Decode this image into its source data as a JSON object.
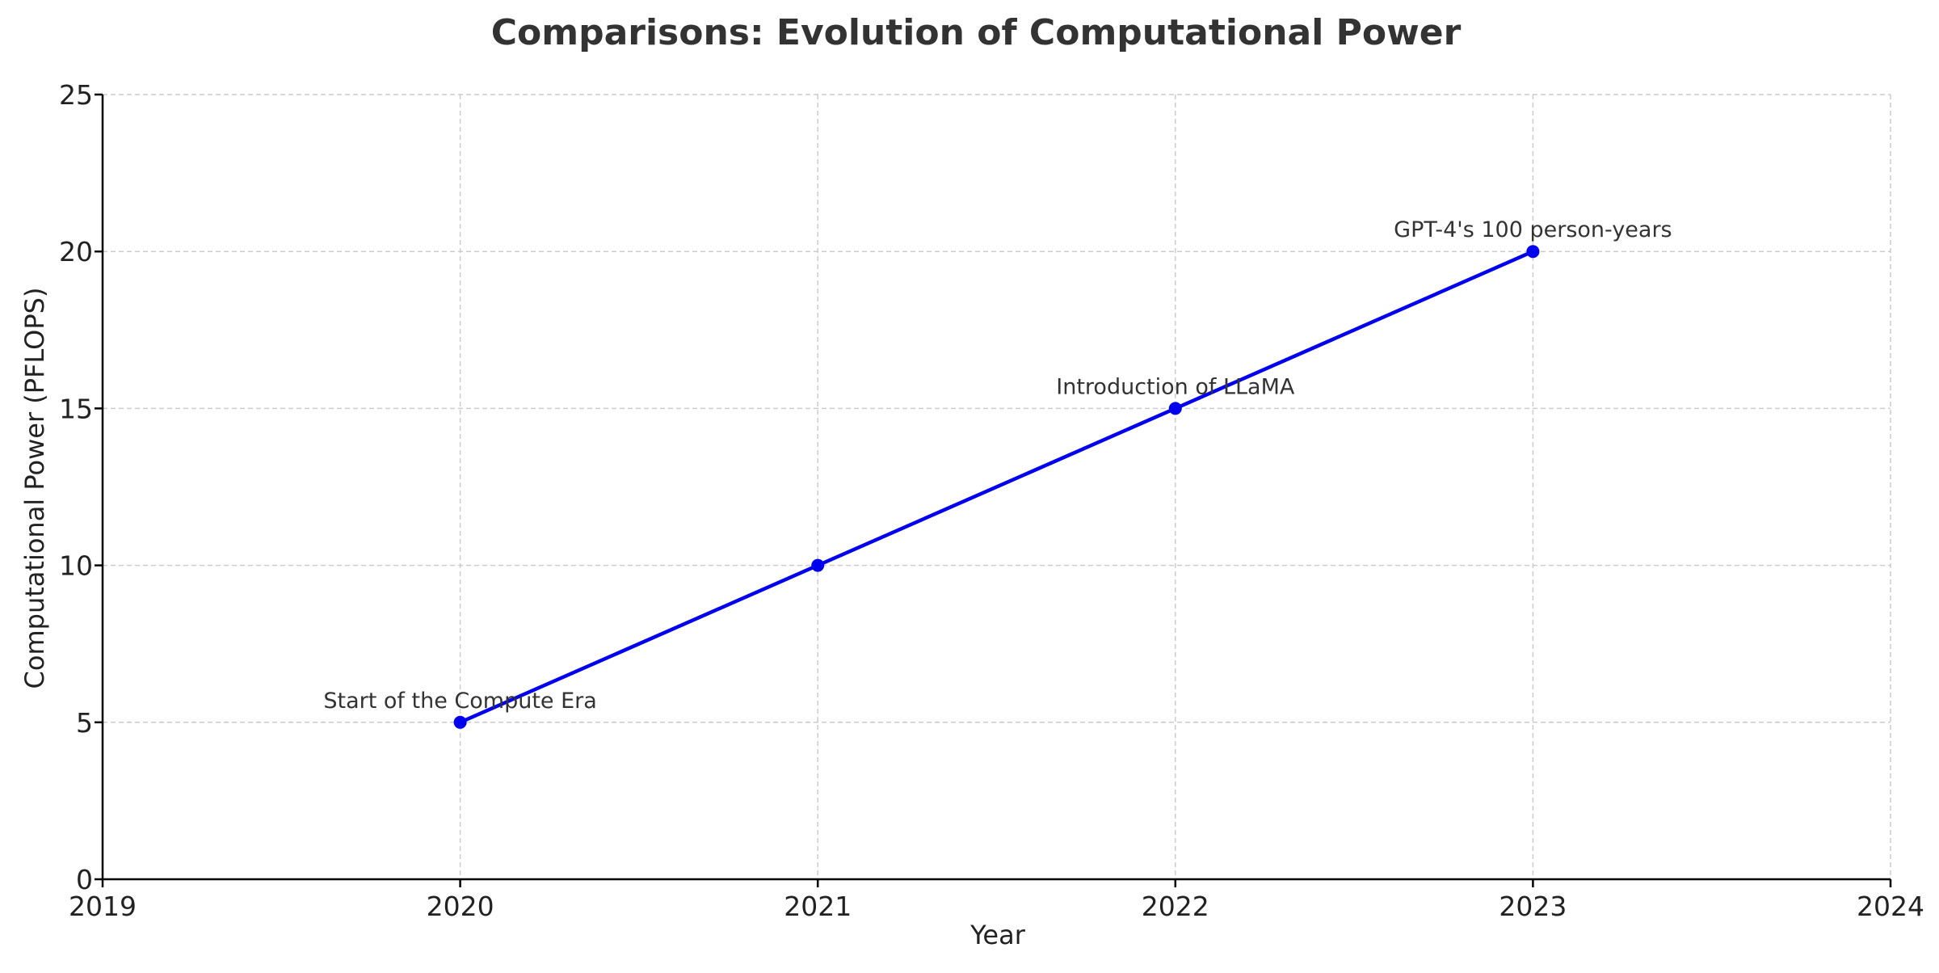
{
  "chart_data": {
    "type": "line",
    "title": "Comparisons: Evolution of Computational Power",
    "xlabel": "Year",
    "ylabel": "Computational Power (PFLOPS)",
    "xlim": [
      2019,
      2024
    ],
    "ylim": [
      0,
      25
    ],
    "x_ticks": [
      "2019",
      "2020",
      "2021",
      "2022",
      "2023",
      "2024"
    ],
    "y_ticks": [
      "0",
      "5",
      "10",
      "15",
      "20",
      "25"
    ],
    "grid": true,
    "series": [
      {
        "x": [
          2020,
          2021,
          2022,
          2023
        ],
        "y": [
          5,
          10,
          15,
          20
        ],
        "color": "#0000ee",
        "marker": "circle"
      }
    ],
    "annotations": [
      {
        "text": "Start of the Compute Era",
        "x": 2020,
        "y": 5
      },
      {
        "text": "Introduction of LLaMA",
        "x": 2022,
        "y": 15
      },
      {
        "text": "GPT-4's 100 person-years",
        "x": 2023,
        "y": 20
      }
    ]
  }
}
